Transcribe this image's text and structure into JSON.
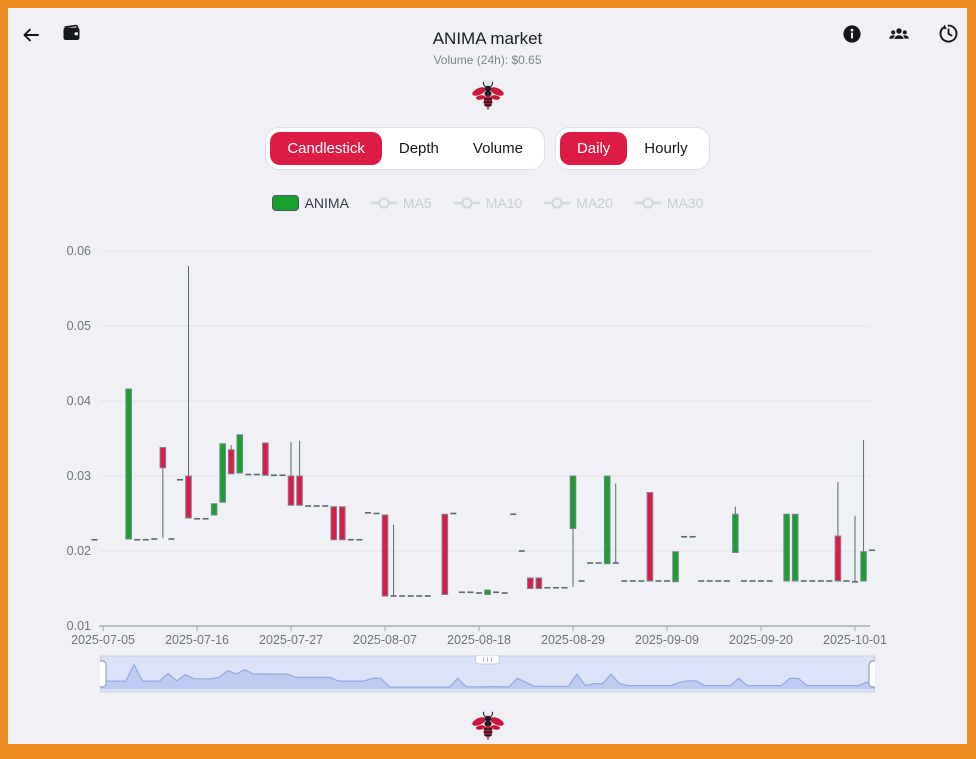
{
  "header": {
    "title": "ANIMA market",
    "subtitle": "Volume (24h): $0.65",
    "icons": [
      "back-arrow",
      "wallet",
      "info",
      "users",
      "history"
    ]
  },
  "toolbar": {
    "chart_types": [
      {
        "label": "Candlestick",
        "active": true
      },
      {
        "label": "Depth",
        "active": false
      },
      {
        "label": "Volume",
        "active": false
      }
    ],
    "intervals": [
      {
        "label": "Daily",
        "active": true
      },
      {
        "label": "Hourly",
        "active": false
      }
    ]
  },
  "legend": {
    "series": [
      {
        "label": "ANIMA",
        "type": "swatch",
        "active": true
      },
      {
        "label": "MA5",
        "type": "line",
        "active": false
      },
      {
        "label": "MA10",
        "type": "line",
        "active": false
      },
      {
        "label": "MA20",
        "type": "line",
        "active": false
      },
      {
        "label": "MA30",
        "type": "line",
        "active": false
      }
    ]
  },
  "colors": {
    "frame_orange": "#ec8c23",
    "background": "#f0f1f4",
    "accent_red": "#dc1c44",
    "candle_up": "#18a12e",
    "candle_down": "#e01a46",
    "candle_border": "#7a8494",
    "wick": "#5d6673",
    "grid": "#e2e5ec",
    "axis_text": "#70747e",
    "slider_band": "#dce3f8",
    "slider_area": "#bdcbf1",
    "slider_line": "#93a9e2"
  },
  "chart_data": {
    "type": "candlestick",
    "series_name": "ANIMA",
    "inactive_series": [
      "MA5",
      "MA10",
      "MA20",
      "MA30"
    ],
    "ylim": [
      0.01,
      0.06
    ],
    "y_ticks": [
      0.01,
      0.02,
      0.03,
      0.04,
      0.05,
      0.06
    ],
    "x_tick_indices": [
      1,
      12,
      23,
      34,
      45,
      56,
      67,
      78,
      89
    ],
    "x_tick_labels": [
      "2025-07-05",
      "2025-07-16",
      "2025-07-27",
      "2025-08-07",
      "2025-08-18",
      "2025-08-29",
      "2025-09-09",
      "2025-09-20",
      "2025-10-01"
    ],
    "candles": [
      [
        "2025-07-04",
        0.0215,
        0.0215,
        0.0215,
        0.0215
      ],
      [
        "2025-07-05",
        null,
        null,
        null,
        null
      ],
      [
        "2025-07-06",
        null,
        null,
        null,
        null
      ],
      [
        "2025-07-07",
        null,
        null,
        null,
        null
      ],
      [
        "2025-07-08",
        0.0216,
        0.0416,
        0.0216,
        0.0416
      ],
      [
        "2025-07-09",
        0.0215,
        0.0215,
        0.0215,
        0.0215
      ],
      [
        "2025-07-10",
        0.0215,
        0.0215,
        0.0215,
        0.0215
      ],
      [
        "2025-07-11",
        0.0216,
        0.0216,
        0.0216,
        0.0216
      ],
      [
        "2025-07-12",
        0.0338,
        0.0311,
        0.0217,
        0.0338
      ],
      [
        "2025-07-13",
        0.0216,
        0.0216,
        0.0216,
        0.0216
      ],
      [
        "2025-07-14",
        0.0295,
        0.0295,
        0.0295,
        0.0295
      ],
      [
        "2025-07-15",
        0.03,
        0.0244,
        0.0244,
        0.058
      ],
      [
        "2025-07-16",
        0.0243,
        0.0243,
        0.0243,
        0.0243
      ],
      [
        "2025-07-17",
        0.0243,
        0.0243,
        0.0243,
        0.0243
      ],
      [
        "2025-07-18",
        0.0248,
        0.0263,
        0.0248,
        0.0263
      ],
      [
        "2025-07-19",
        0.0265,
        0.0343,
        0.0265,
        0.0343
      ],
      [
        "2025-07-20",
        0.0335,
        0.0303,
        0.0303,
        0.0341
      ],
      [
        "2025-07-21",
        0.0304,
        0.0355,
        0.0304,
        0.0355
      ],
      [
        "2025-07-22",
        0.0302,
        0.0302,
        0.0302,
        0.0302
      ],
      [
        "2025-07-23",
        0.0302,
        0.0302,
        0.0302,
        0.0302
      ],
      [
        "2025-07-24",
        0.0344,
        0.0301,
        0.0301,
        0.0344
      ],
      [
        "2025-07-25",
        0.0301,
        0.0301,
        0.0301,
        0.0301
      ],
      [
        "2025-07-26",
        0.0301,
        0.0301,
        0.0301,
        0.0301
      ],
      [
        "2025-07-27",
        0.03,
        0.0261,
        0.0261,
        0.0345
      ],
      [
        "2025-07-28",
        0.03,
        0.0261,
        0.0261,
        0.0347
      ],
      [
        "2025-07-29",
        0.026,
        0.026,
        0.026,
        0.026
      ],
      [
        "2025-07-30",
        0.026,
        0.026,
        0.026,
        0.026
      ],
      [
        "2025-07-31",
        0.026,
        0.026,
        0.026,
        0.026
      ],
      [
        "2025-08-01",
        0.0259,
        0.0215,
        0.0215,
        0.0259
      ],
      [
        "2025-08-02",
        0.0259,
        0.0215,
        0.0215,
        0.0259
      ],
      [
        "2025-08-03",
        0.0215,
        0.0215,
        0.0215,
        0.0215
      ],
      [
        "2025-08-04",
        0.0215,
        0.0215,
        0.0215,
        0.0215
      ],
      [
        "2025-08-05",
        0.0251,
        0.0251,
        0.0251,
        0.0251
      ],
      [
        "2025-08-06",
        0.025,
        0.025,
        0.025,
        0.025
      ],
      [
        "2025-08-07",
        0.0248,
        0.014,
        0.014,
        0.0248
      ],
      [
        "2025-08-08",
        0.014,
        0.014,
        0.014,
        0.0235
      ],
      [
        "2025-08-09",
        0.014,
        0.014,
        0.014,
        0.014
      ],
      [
        "2025-08-10",
        0.014,
        0.014,
        0.014,
        0.014
      ],
      [
        "2025-08-11",
        0.014,
        0.014,
        0.014,
        0.014
      ],
      [
        "2025-08-12",
        0.014,
        0.014,
        0.014,
        0.014
      ],
      [
        "2025-08-13",
        null,
        null,
        null,
        null
      ],
      [
        "2025-08-14",
        0.0249,
        0.0142,
        0.0142,
        0.0249
      ],
      [
        "2025-08-15",
        0.025,
        0.025,
        0.025,
        0.025
      ],
      [
        "2025-08-16",
        0.0145,
        0.0145,
        0.0145,
        0.0145
      ],
      [
        "2025-08-17",
        0.0145,
        0.0145,
        0.0145,
        0.0145
      ],
      [
        "2025-08-18",
        0.0144,
        0.0144,
        0.0144,
        0.0144
      ],
      [
        "2025-08-19",
        0.0142,
        0.0148,
        0.0142,
        0.0148
      ],
      [
        "2025-08-20",
        0.0145,
        0.0145,
        0.0145,
        0.0145
      ],
      [
        "2025-08-21",
        0.0144,
        0.0144,
        0.0144,
        0.0144
      ],
      [
        "2025-08-22",
        0.0249,
        0.0249,
        0.0249,
        0.0249
      ],
      [
        "2025-08-23",
        0.02,
        0.02,
        0.02,
        0.02
      ],
      [
        "2025-08-24",
        0.0164,
        0.015,
        0.015,
        0.0164
      ],
      [
        "2025-08-25",
        0.0164,
        0.015,
        0.015,
        0.0164
      ],
      [
        "2025-08-26",
        0.0151,
        0.0151,
        0.0151,
        0.0151
      ],
      [
        "2025-08-27",
        0.0151,
        0.0151,
        0.0151,
        0.0151
      ],
      [
        "2025-08-28",
        0.0151,
        0.0151,
        0.0151,
        0.0151
      ],
      [
        "2025-08-29",
        0.023,
        0.03,
        0.0152,
        0.03
      ],
      [
        "2025-08-30",
        0.016,
        0.016,
        0.016,
        0.016
      ],
      [
        "2025-08-31",
        0.0184,
        0.0184,
        0.0184,
        0.0184
      ],
      [
        "2025-09-01",
        0.0184,
        0.0184,
        0.0184,
        0.0184
      ],
      [
        "2025-09-02",
        0.0183,
        0.03,
        0.0183,
        0.03
      ],
      [
        "2025-09-03",
        0.0184,
        0.0184,
        0.0184,
        0.029
      ],
      [
        "2025-09-04",
        0.016,
        0.016,
        0.016,
        0.016
      ],
      [
        "2025-09-05",
        0.016,
        0.016,
        0.016,
        0.016
      ],
      [
        "2025-09-06",
        0.016,
        0.016,
        0.016,
        0.016
      ],
      [
        "2025-09-07",
        0.0278,
        0.016,
        0.016,
        0.0278
      ],
      [
        "2025-09-08",
        0.016,
        0.016,
        0.016,
        0.016
      ],
      [
        "2025-09-09",
        0.016,
        0.016,
        0.016,
        0.016
      ],
      [
        "2025-09-10",
        0.0159,
        0.0199,
        0.0159,
        0.0199
      ],
      [
        "2025-09-11",
        0.0219,
        0.0219,
        0.0219,
        0.0219
      ],
      [
        "2025-09-12",
        0.0219,
        0.0219,
        0.0219,
        0.0219
      ],
      [
        "2025-09-13",
        0.016,
        0.016,
        0.016,
        0.016
      ],
      [
        "2025-09-14",
        0.016,
        0.016,
        0.016,
        0.016
      ],
      [
        "2025-09-15",
        0.016,
        0.016,
        0.016,
        0.016
      ],
      [
        "2025-09-16",
        0.016,
        0.016,
        0.016,
        0.016
      ],
      [
        "2025-09-17",
        0.0198,
        0.0249,
        0.0198,
        0.0259
      ],
      [
        "2025-09-18",
        0.016,
        0.016,
        0.016,
        0.016
      ],
      [
        "2025-09-19",
        0.016,
        0.016,
        0.016,
        0.016
      ],
      [
        "2025-09-20",
        0.016,
        0.016,
        0.016,
        0.016
      ],
      [
        "2025-09-21",
        0.016,
        0.016,
        0.016,
        0.016
      ],
      [
        "2025-09-22",
        null,
        null,
        null,
        null
      ],
      [
        "2025-09-23",
        0.016,
        0.0249,
        0.016,
        0.0249
      ],
      [
        "2025-09-24",
        0.016,
        0.0249,
        0.016,
        0.0249
      ],
      [
        "2025-09-25",
        0.016,
        0.016,
        0.016,
        0.016
      ],
      [
        "2025-09-26",
        0.016,
        0.016,
        0.016,
        0.016
      ],
      [
        "2025-09-27",
        0.016,
        0.016,
        0.016,
        0.016
      ],
      [
        "2025-09-28",
        0.016,
        0.016,
        0.016,
        0.016
      ],
      [
        "2025-09-29",
        0.022,
        0.016,
        0.016,
        0.0292
      ],
      [
        "2025-09-30",
        0.016,
        0.016,
        0.016,
        0.016
      ],
      [
        "2025-10-01",
        0.0159,
        0.0159,
        0.0159,
        0.0247
      ],
      [
        "2025-10-02",
        0.016,
        0.0199,
        0.016,
        0.0348
      ],
      [
        "2025-10-03",
        0.0201,
        0.0201,
        0.0201,
        0.0201
      ]
    ]
  }
}
